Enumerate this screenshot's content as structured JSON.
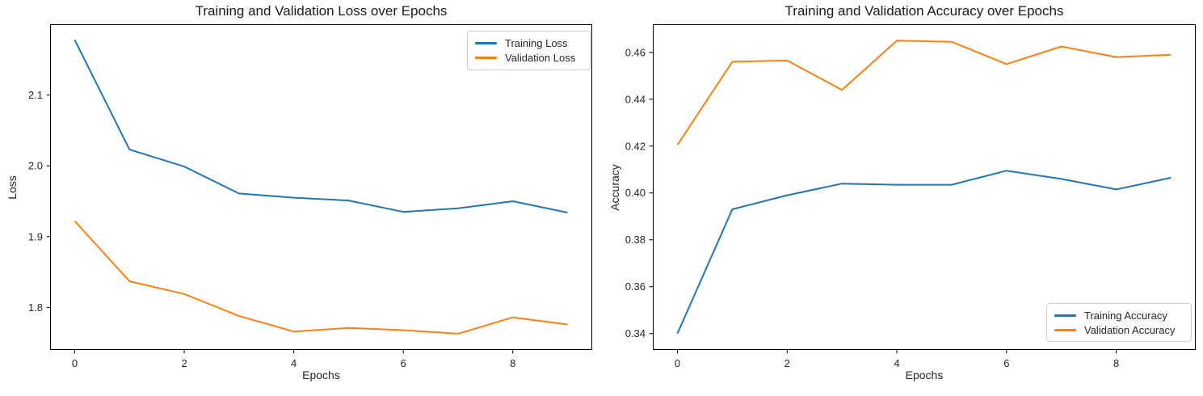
{
  "figure": {
    "background_color": "#ffffff",
    "text_color": "#262626",
    "spine_color": "#000000"
  },
  "chart_data": [
    {
      "type": "line",
      "title": "Training and Validation Loss over Epochs",
      "xlabel": "Epochs",
      "ylabel": "Loss",
      "x": [
        0,
        1,
        2,
        3,
        4,
        5,
        6,
        7,
        8,
        9
      ],
      "series": [
        {
          "name": "Training Loss",
          "color": "#1f77b4",
          "values": [
            2.178,
            2.023,
            1.999,
            1.961,
            1.955,
            1.951,
            1.935,
            1.94,
            1.95,
            1.934
          ]
        },
        {
          "name": "Validation Loss",
          "color": "#ff7f0e",
          "values": [
            1.922,
            1.837,
            1.819,
            1.788,
            1.766,
            1.771,
            1.768,
            1.763,
            1.786,
            1.776
          ]
        }
      ],
      "xlim": [
        -0.45,
        9.45
      ],
      "ylim": [
        1.74,
        2.2
      ],
      "x_ticks": [
        0,
        2,
        4,
        6,
        8
      ],
      "x_tick_labels": [
        "0",
        "2",
        "4",
        "6",
        "8"
      ],
      "y_ticks": [
        1.8,
        1.9,
        2.0,
        2.1
      ],
      "y_tick_labels": [
        "1.8",
        "1.9",
        "2.0",
        "2.1"
      ],
      "grid": false,
      "legend_position": "upper right"
    },
    {
      "type": "line",
      "title": "Training and Validation Accuracy over Epochs",
      "xlabel": "Epochs",
      "ylabel": "Accuracy",
      "x": [
        0,
        1,
        2,
        3,
        4,
        5,
        6,
        7,
        8,
        9
      ],
      "series": [
        {
          "name": "Training Accuracy",
          "color": "#1f77b4",
          "values": [
            0.34,
            0.393,
            0.399,
            0.404,
            0.4035,
            0.4035,
            0.4095,
            0.406,
            0.4015,
            0.4065
          ]
        },
        {
          "name": "Validation Accuracy",
          "color": "#ff7f0e",
          "values": [
            0.4205,
            0.456,
            0.4565,
            0.444,
            0.465,
            0.4645,
            0.455,
            0.4625,
            0.458,
            0.459
          ]
        }
      ],
      "xlim": [
        -0.45,
        9.45
      ],
      "ylim": [
        0.333,
        0.472
      ],
      "x_ticks": [
        0,
        2,
        4,
        6,
        8
      ],
      "x_tick_labels": [
        "0",
        "2",
        "4",
        "6",
        "8"
      ],
      "y_ticks": [
        0.34,
        0.36,
        0.38,
        0.4,
        0.42,
        0.44,
        0.46
      ],
      "y_tick_labels": [
        "0.34",
        "0.36",
        "0.38",
        "0.40",
        "0.42",
        "0.44",
        "0.46"
      ],
      "grid": false,
      "legend_position": "lower right"
    }
  ]
}
